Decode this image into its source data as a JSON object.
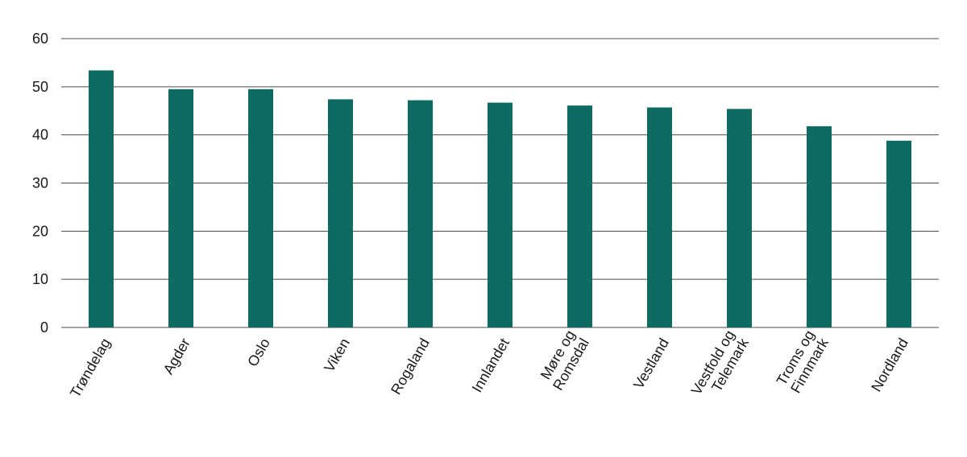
{
  "chart_data": {
    "type": "bar",
    "title": "",
    "xlabel": "",
    "ylabel": "",
    "ylim": [
      0,
      60
    ],
    "yticks": [
      0,
      10,
      20,
      30,
      40,
      50,
      60
    ],
    "grid": true,
    "bar_color": "#0e6b62",
    "categories": [
      [
        "Trøndelag"
      ],
      [
        "Agder"
      ],
      [
        "Oslo"
      ],
      [
        "Viken"
      ],
      [
        "Rogaland"
      ],
      [
        "Innlandet"
      ],
      [
        "Møre og",
        "Romsdal"
      ],
      [
        "Vestland"
      ],
      [
        "Vestfold og",
        "Telemark"
      ],
      [
        "Troms og",
        "Finnmark"
      ],
      [
        "Nordland"
      ]
    ],
    "values": [
      53.4,
      49.5,
      49.5,
      47.4,
      47.2,
      46.7,
      46.1,
      45.7,
      45.4,
      41.8,
      38.8
    ]
  }
}
